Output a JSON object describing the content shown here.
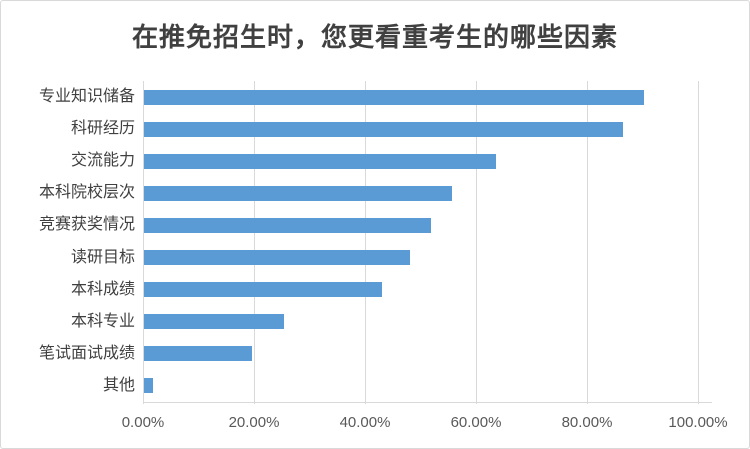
{
  "title": "在推免招生时，您更看重考生的哪些因素",
  "chart_data": {
    "type": "bar",
    "orientation": "horizontal",
    "title": "在推免招生时，您更看重考生的哪些因素",
    "categories": [
      "专业知识储备",
      "科研经历",
      "交流能力",
      "本科院校层次",
      "竞赛获奖情况",
      "读研目标",
      "本科成绩",
      "本科专业",
      "笔试面试成绩",
      "其他"
    ],
    "values": [
      90.0,
      86.3,
      63.5,
      55.5,
      51.8,
      48.0,
      42.8,
      25.2,
      19.5,
      1.6
    ],
    "unit": "%",
    "x_ticks": [
      "0.00%",
      "20.00%",
      "40.00%",
      "60.00%",
      "80.00%",
      "100.00%"
    ],
    "x_tick_values": [
      0,
      20,
      40,
      60,
      80,
      100
    ],
    "xlim": [
      0,
      102
    ],
    "grid": "vertical-only",
    "legend": "none",
    "colors": {
      "bar": "#5b9bd5",
      "gridline": "#d9d9d9",
      "axis_line": "#d9d9d9",
      "title_text": "#404040",
      "category_text": "#404040",
      "tick_text": "#595959",
      "background": "#ffffff",
      "border": "#d9d9d9"
    }
  }
}
